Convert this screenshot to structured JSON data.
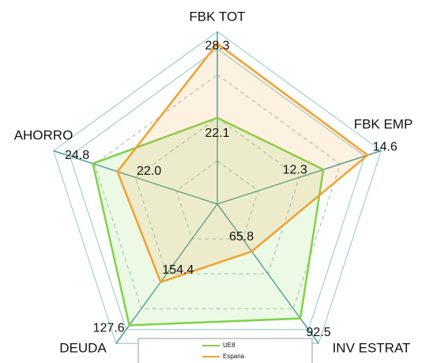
{
  "chart_data": {
    "type": "radar",
    "axes": [
      "FBK TOT",
      "FBK EMP",
      "INV ESTRAT",
      "DEUDA",
      "AHORRO"
    ],
    "rlims": [
      [
        14.9,
        29.3
      ],
      [
        6.8,
        15.3
      ],
      [
        46.9,
        102.5
      ],
      [
        202.8,
        116.3
      ],
      [
        10.6,
        29.3
      ]
    ],
    "series": [
      {
        "name": "UE8",
        "color": "#7ed348",
        "values": [
          22.1,
          12.3,
          92.5,
          127.6,
          24.8
        ]
      },
      {
        "name": "Espana",
        "color": "#f0a030",
        "values": [
          28.3,
          14.6,
          65.8,
          154.4,
          22.0
        ],
        "value_labels": [
          "28.3",
          "14.6",
          "65.8",
          "154.4",
          "22.0"
        ]
      }
    ],
    "legend": "bottom"
  }
}
